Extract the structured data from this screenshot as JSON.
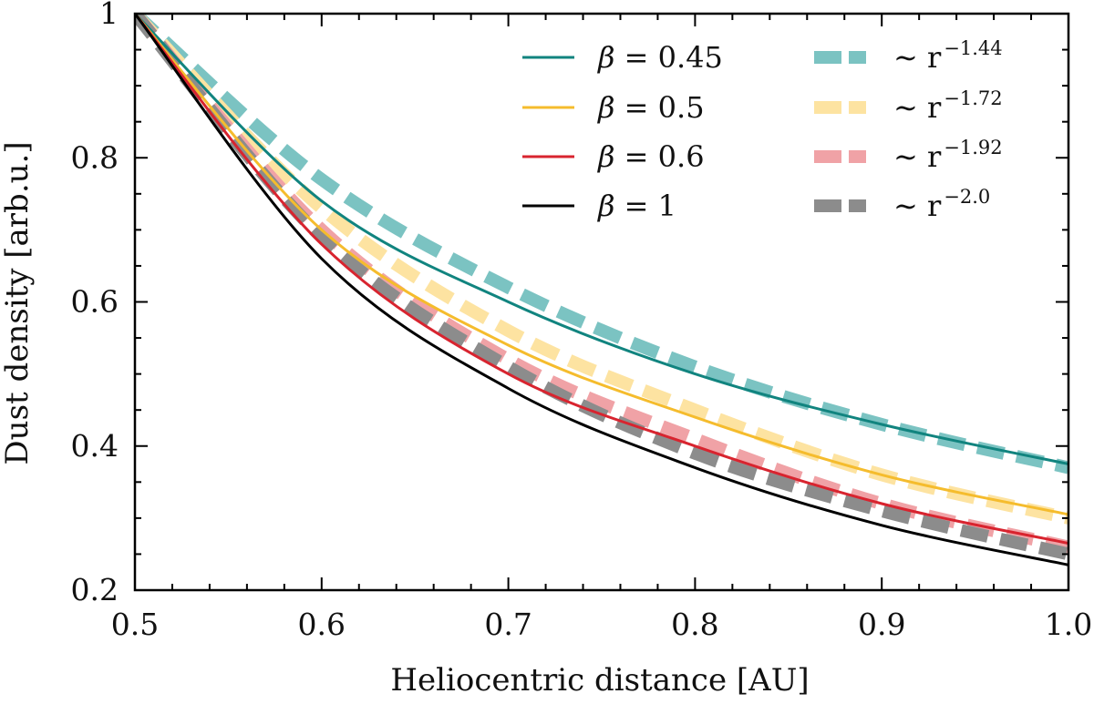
{
  "chart_data": {
    "type": "line",
    "xlabel": "Heliocentric distance [AU]",
    "ylabel": "Dust density [arb.u.]",
    "xlim": [
      0.5,
      1.0
    ],
    "ylim": [
      0.2,
      1.0
    ],
    "xticks": [
      0.5,
      0.6,
      0.7,
      0.8,
      0.9,
      1.0
    ],
    "xtick_labels": [
      "0.5",
      "0.6",
      "0.7",
      "0.8",
      "0.9",
      "1.0"
    ],
    "yticks": [
      0.2,
      0.4,
      0.6,
      0.8,
      1.0
    ],
    "ytick_labels": [
      "0.2",
      "0.4",
      "0.6",
      "0.8",
      "1"
    ],
    "grid": false,
    "legend_position": "top-right",
    "series": [
      {
        "name": "β = 0.45",
        "style": "solid",
        "color": "#11847f",
        "x": [
          0.5,
          0.6,
          0.7,
          0.8,
          0.9,
          1.0
        ],
        "y": [
          1.0,
          0.74,
          0.6,
          0.5,
          0.43,
          0.375
        ]
      },
      {
        "name": "β = 0.5",
        "style": "solid",
        "color": "#f5bc2d",
        "x": [
          0.5,
          0.6,
          0.7,
          0.8,
          0.9,
          1.0
        ],
        "y": [
          1.0,
          0.7,
          0.54,
          0.44,
          0.36,
          0.305
        ]
      },
      {
        "name": "β = 0.6",
        "style": "solid",
        "color": "#d8242f",
        "x": [
          0.5,
          0.6,
          0.7,
          0.8,
          0.9,
          1.0
        ],
        "y": [
          1.0,
          0.68,
          0.5,
          0.4,
          0.32,
          0.265
        ]
      },
      {
        "name": "β = 1",
        "style": "solid",
        "color": "#000000",
        "x": [
          0.5,
          0.6,
          0.7,
          0.8,
          0.9,
          1.0
        ],
        "y": [
          1.0,
          0.66,
          0.48,
          0.37,
          0.29,
          0.235
        ]
      },
      {
        "name": "~ r^-1.44",
        "style": "dashed",
        "color": "#7bc3c2",
        "exponent": -1.44,
        "x": [
          0.5,
          0.6,
          0.7,
          0.8,
          0.9,
          1.0
        ],
        "y": [
          1.0,
          0.77,
          0.62,
          0.51,
          0.43,
          0.37
        ]
      },
      {
        "name": "~ r^-1.72",
        "style": "dashed",
        "color": "#fde3a1",
        "exponent": -1.72,
        "x": [
          0.5,
          0.6,
          0.7,
          0.8,
          0.9,
          1.0
        ],
        "y": [
          1.0,
          0.73,
          0.56,
          0.45,
          0.36,
          0.3
        ]
      },
      {
        "name": "~ r^-1.92",
        "style": "dashed",
        "color": "#f0a2a6",
        "exponent": -1.92,
        "x": [
          0.5,
          0.6,
          0.7,
          0.8,
          0.9,
          1.0
        ],
        "y": [
          1.0,
          0.7,
          0.52,
          0.41,
          0.32,
          0.26
        ]
      },
      {
        "name": "~ r^-2.0",
        "style": "dashed",
        "color": "#8c8c8c",
        "exponent": -2.0,
        "x": [
          0.5,
          0.6,
          0.7,
          0.8,
          0.9,
          1.0
        ],
        "y": [
          1.0,
          0.69,
          0.51,
          0.39,
          0.31,
          0.25
        ]
      }
    ]
  },
  "legend": {
    "items": [
      {
        "prefix": "β",
        "text": " = 0.45",
        "color": "#11847f",
        "style": "solid"
      },
      {
        "prefix": "β",
        "text": " = 0.5",
        "color": "#f5bc2d",
        "style": "solid"
      },
      {
        "prefix": "β",
        "text": " = 0.6",
        "color": "#d8242f",
        "style": "solid"
      },
      {
        "prefix": "β",
        "text": " = 1",
        "color": "#000000",
        "style": "solid"
      },
      {
        "prefix": "∼ r",
        "text": "−1.44",
        "color": "#7bc3c2",
        "style": "dashed"
      },
      {
        "prefix": "∼ r",
        "text": "−1.72",
        "color": "#fde3a1",
        "style": "dashed"
      },
      {
        "prefix": "∼ r",
        "text": "−1.92",
        "color": "#f0a2a6",
        "style": "dashed"
      },
      {
        "prefix": "∼ r",
        "text": "−2.0",
        "color": "#8c8c8c",
        "style": "dashed"
      }
    ]
  }
}
